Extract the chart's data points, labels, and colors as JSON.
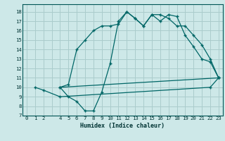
{
  "xlabel": "Humidex (Indice chaleur)",
  "bg_color": "#cde8e8",
  "grid_color": "#aacccc",
  "line_color": "#006666",
  "xlim": [
    -0.5,
    23.5
  ],
  "ylim": [
    7,
    18.8
  ],
  "xticks": [
    0,
    1,
    2,
    3,
    4,
    5,
    6,
    7,
    8,
    9,
    10,
    11,
    12,
    13,
    14,
    15,
    16,
    17,
    18,
    19,
    20,
    21,
    22,
    23
  ],
  "xtick_labels": [
    "0",
    "1",
    "2",
    "",
    "4",
    "5",
    "6",
    "7",
    "8",
    "9",
    "10",
    "11",
    "12",
    "13",
    "14",
    "15",
    "16",
    "17",
    "18",
    "19",
    "20",
    "21",
    "22",
    "23"
  ],
  "yticks": [
    7,
    8,
    9,
    10,
    11,
    12,
    13,
    14,
    15,
    16,
    17,
    18
  ],
  "line1_x": [
    4,
    5,
    6,
    7,
    8,
    9,
    10,
    11,
    12,
    13,
    14,
    15,
    16,
    17,
    18,
    19,
    20,
    21,
    22,
    23
  ],
  "line1_y": [
    10.0,
    9.0,
    8.5,
    7.5,
    7.5,
    9.5,
    12.5,
    17.0,
    18.0,
    17.3,
    16.5,
    17.7,
    17.0,
    17.7,
    17.5,
    15.5,
    14.3,
    13.0,
    12.7,
    11.0
  ],
  "line2_x": [
    4,
    5,
    6,
    7,
    8,
    9,
    10,
    11,
    12,
    13,
    14,
    15,
    16,
    17,
    18,
    19,
    20,
    21,
    22,
    23
  ],
  "line2_y": [
    10.0,
    10.3,
    14.0,
    15.0,
    16.0,
    16.5,
    16.5,
    16.7,
    18.0,
    17.3,
    16.5,
    17.7,
    17.7,
    17.3,
    16.5,
    16.5,
    15.5,
    14.5,
    13.0,
    11.0
  ],
  "line3_x": [
    4,
    23
  ],
  "line3_y": [
    10.0,
    11.0
  ],
  "line4_x": [
    1,
    2,
    4,
    22,
    23
  ],
  "line4_y": [
    10.0,
    9.7,
    9.0,
    10.0,
    11.0
  ]
}
